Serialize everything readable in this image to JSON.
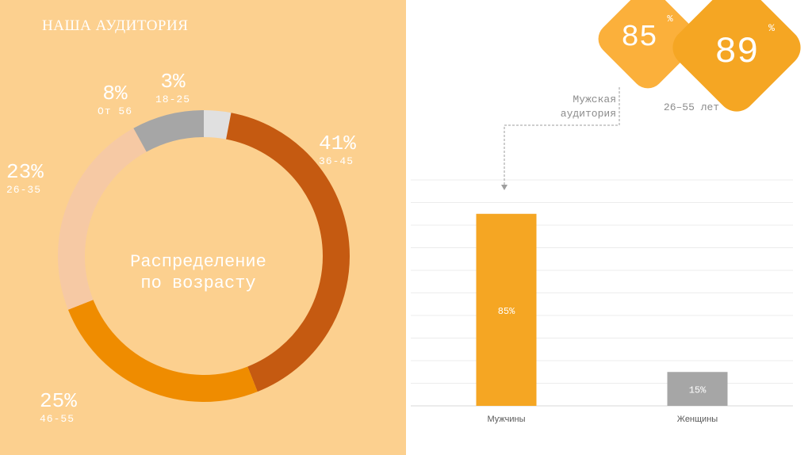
{
  "page_title": "НАША АУДИТОРИЯ",
  "colors": {
    "panel_bg": "#fcd08f",
    "accent_orange": "#f5a623",
    "dark_orange": "#c55a11",
    "mid_orange": "#ef8c00",
    "peach": "#f6c9a4",
    "gray": "#a6a6a6",
    "light_gray": "#e0e0e0"
  },
  "chart_data": [
    {
      "type": "pie",
      "title": "Распределение по возрасту",
      "slices": [
        {
          "label": "18-25",
          "value": 3,
          "value_label": "3%",
          "color": "#e0e0e0"
        },
        {
          "label": "36-45",
          "value": 41,
          "value_label": "41%",
          "color": "#c55a11"
        },
        {
          "label": "46-55",
          "value": 25,
          "value_label": "25%",
          "color": "#ef8c00"
        },
        {
          "label": "26-35",
          "value": 23,
          "value_label": "23%",
          "color": "#f6c9a4"
        },
        {
          "label": "От 56",
          "value": 8,
          "value_label": "8%",
          "color": "#a6a6a6"
        }
      ]
    },
    {
      "type": "bar",
      "categories": [
        "Мужчины",
        "Женщины"
      ],
      "values": [
        85,
        15
      ],
      "value_labels": [
        "85%",
        "15%"
      ],
      "colors": [
        "#f5a623",
        "#a6a6a6"
      ],
      "ylim": [
        0,
        100
      ],
      "grid": true
    }
  ],
  "badges": [
    {
      "value": "85",
      "unit": "%"
    },
    {
      "value": "89",
      "unit": "%"
    }
  ],
  "annotations": {
    "male_audience": [
      "Мужская",
      "аудитория"
    ],
    "age_range": "26–55 лет"
  }
}
